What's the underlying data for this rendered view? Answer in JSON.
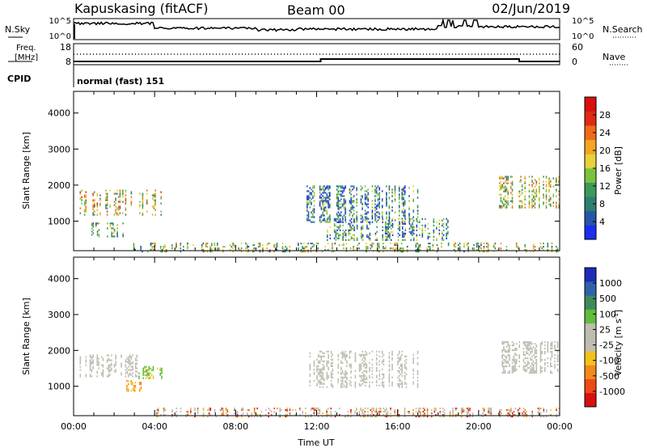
{
  "header": {
    "site": "Kapuskasing (fitACF)",
    "beam": "Beam 00",
    "date": "02/Jun/2019"
  },
  "noise_panel": {
    "left_label": "N.Sky",
    "right_label": "N.Search",
    "left_ticks": [
      "10^5",
      "10^0"
    ],
    "right_ticks": [
      "10^5",
      "10^0"
    ]
  },
  "freq_panel": {
    "left_label_line1": "Freq.",
    "left_label_line2": "[MHz]",
    "left_ticks": [
      "18",
      "8"
    ],
    "right_label": "Nave",
    "right_ticks": [
      "60",
      "0"
    ]
  },
  "cpid": {
    "label": "CPID",
    "value": "normal (fast) 151"
  },
  "colors": {
    "power_scale": [
      "#1c2ef0",
      "#2656a8",
      "#2f7f6e",
      "#3a9a5a",
      "#7cc242",
      "#e8d23a",
      "#f4a522",
      "#f06a1c",
      "#e02a16",
      "#d81010"
    ],
    "velocity_scale": [
      "#1e2cb8",
      "#2f62a8",
      "#3f8a5a",
      "#5fbf3a",
      "#bdbdb0",
      "#bdbdb0",
      "#f2c21c",
      "#f28a1c",
      "#ee4a16",
      "#d81010"
    ],
    "ground_scatter": "#bdbdb0"
  },
  "chart_data": [
    {
      "type": "heatmap",
      "name": "power",
      "ylabel": "Slant Range [km]",
      "xlabel": "",
      "xlim": [
        "00:00",
        "24:00"
      ],
      "ylim": [
        180,
        4600
      ],
      "yticks": [
        "1000",
        "2000",
        "3000",
        "4000"
      ],
      "colorbar": {
        "label": "Power [dB]",
        "range": [
          0,
          32
        ],
        "ticks": [
          "4",
          "8",
          "12",
          "16",
          "20",
          "24",
          "28"
        ]
      },
      "regions": [
        {
          "t_start": 0.3,
          "t_end": 4.4,
          "r_min": 1200,
          "r_max": 1900,
          "level": 0.55
        },
        {
          "t_start": 0.8,
          "t_end": 2.6,
          "r_min": 600,
          "r_max": 1000,
          "level": 0.4
        },
        {
          "t_start": 2.8,
          "t_end": 24.0,
          "r_min": 180,
          "r_max": 450,
          "level": 0.45
        },
        {
          "t_start": 11.5,
          "t_end": 17.0,
          "r_min": 1000,
          "r_max": 2000,
          "level": 0.25
        },
        {
          "t_start": 12.5,
          "t_end": 18.5,
          "r_min": 500,
          "r_max": 1100,
          "level": 0.3
        },
        {
          "t_start": 21.0,
          "t_end": 24.0,
          "r_min": 1400,
          "r_max": 2300,
          "level": 0.5
        }
      ]
    },
    {
      "type": "heatmap",
      "name": "velocity",
      "ylabel": "Slant Range [km]",
      "xlabel": "Time UT",
      "xlim": [
        "00:00",
        "24:00"
      ],
      "xticks": [
        "00:00",
        "04:00",
        "08:00",
        "12:00",
        "16:00",
        "20:00",
        "00:00"
      ],
      "ylim": [
        180,
        4600
      ],
      "yticks": [
        "1000",
        "2000",
        "3000",
        "4000"
      ],
      "colorbar": {
        "label": "Velocity [m s^-1]",
        "ticks": [
          "1000",
          "500",
          "100",
          "25",
          "-25",
          "-100",
          "-500",
          "-1000"
        ]
      },
      "regions": [
        {
          "t_start": 0.3,
          "t_end": 3.2,
          "r_min": 1300,
          "r_max": 1900,
          "kind": "ground"
        },
        {
          "t_start": 3.2,
          "t_end": 4.4,
          "r_min": 1250,
          "r_max": 1600,
          "kind": "green"
        },
        {
          "t_start": 2.6,
          "t_end": 3.3,
          "r_min": 900,
          "r_max": 1200,
          "kind": "orange"
        },
        {
          "t_start": 4.0,
          "t_end": 24.0,
          "r_min": 180,
          "r_max": 450,
          "kind": "mixed"
        },
        {
          "t_start": 11.5,
          "t_end": 17.0,
          "r_min": 1000,
          "r_max": 2000,
          "kind": "ground"
        },
        {
          "t_start": 21.0,
          "t_end": 24.0,
          "r_min": 1400,
          "r_max": 2300,
          "kind": "ground"
        }
      ]
    }
  ]
}
